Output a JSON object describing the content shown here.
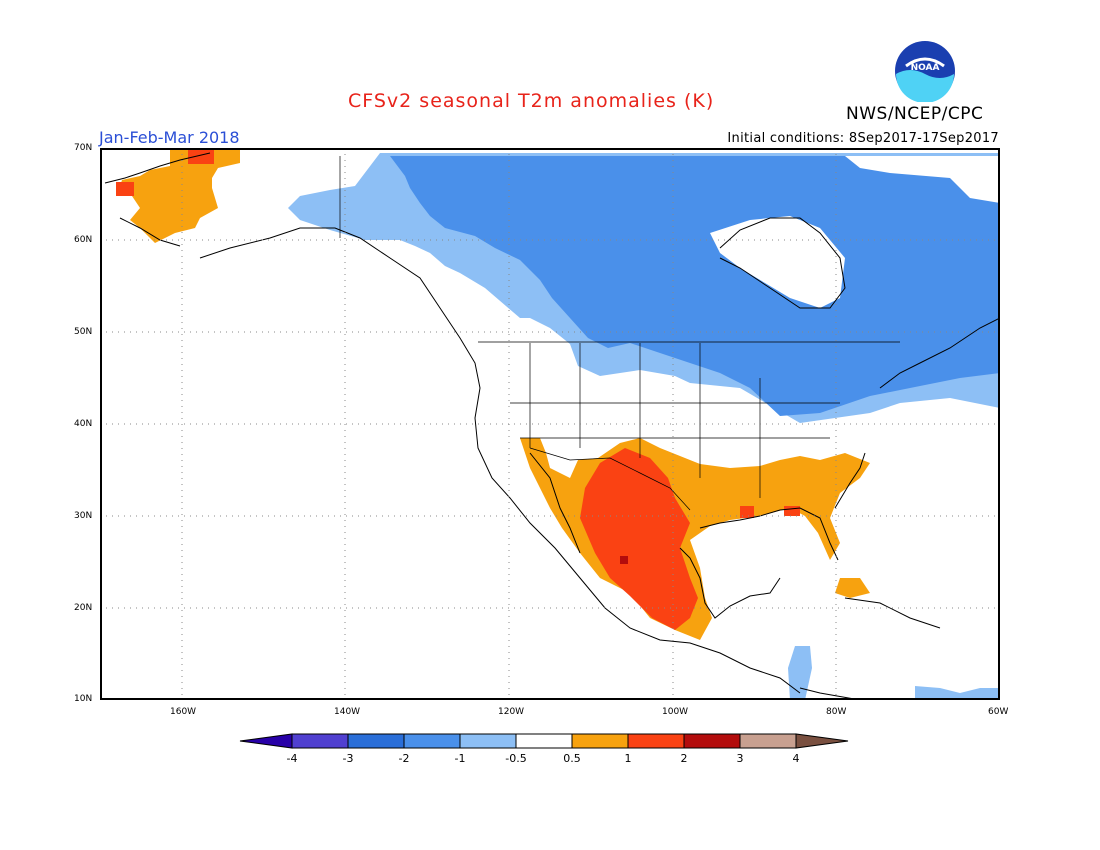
{
  "title": "CFSv2 seasonal T2m anomalies (K)",
  "agency": "NWS/NCEP/CPC",
  "logo_text": "NOAA",
  "period": "Jan-Feb-Mar 2018",
  "initial_conditions": "Initial conditions: 8Sep2017-17Sep2017",
  "colors": {
    "title": "#e8231a",
    "period": "#2b4fd6",
    "light_blue": "#8dbff5",
    "mid_blue": "#4a90ea",
    "orange": "#f7a20f",
    "red_orange": "#fa4213",
    "dark_red": "#b30c0c",
    "grid": "#888888"
  },
  "map": {
    "lat_labels": [
      "70N",
      "60N",
      "50N",
      "40N",
      "30N",
      "20N",
      "10N"
    ],
    "lon_labels": [
      "160W",
      "140W",
      "120W",
      "100W",
      "80W",
      "60W"
    ],
    "lat_range": [
      10,
      70
    ],
    "lon_range": [
      -171,
      -60
    ],
    "regions": [
      {
        "name": "canada-cold",
        "category": "-2 to -1",
        "color": "#4a90ea"
      },
      {
        "name": "canada-edge-cool",
        "category": "-1 to -0.5",
        "color": "#8dbff5"
      },
      {
        "name": "alaska-bering-warm",
        "category": "0.5 to 1",
        "color": "#f7a20f"
      },
      {
        "name": "southern-us-warm",
        "category": "0.5 to 1",
        "color": "#f7a20f"
      },
      {
        "name": "mexico-southwest-warm",
        "category": "1 to 2",
        "color": "#fa4213"
      }
    ]
  },
  "colorbar": {
    "labels": [
      "-4",
      "-3",
      "-2",
      "-1",
      "-0.5",
      "0.5",
      "1",
      "2",
      "3",
      "4"
    ],
    "colors": [
      "#2800a8",
      "#5040d0",
      "#2a6ed8",
      "#4a90ea",
      "#8dbff5",
      "#ffffff",
      "#f7a20f",
      "#fa4213",
      "#b30c0c",
      "#c8a090",
      "#7a5040"
    ]
  }
}
